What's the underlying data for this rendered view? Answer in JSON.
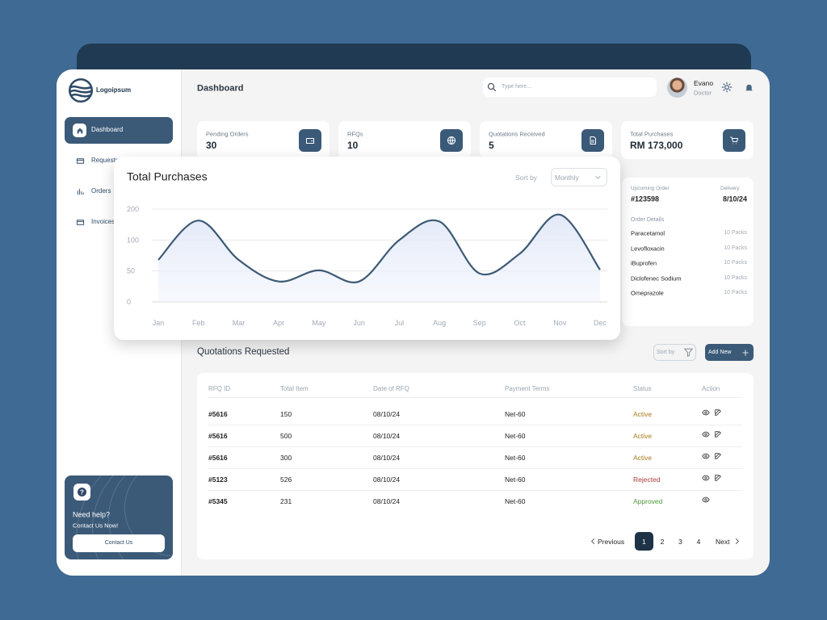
{
  "sidebar": {
    "brand": "Logoipsum",
    "nav": [
      "Dashboard",
      "Requests",
      "Orders",
      "Invoices"
    ],
    "help": {
      "title": "Need help?",
      "subtitle": "Contact Us Now!",
      "button": "Contact Us"
    }
  },
  "header": {
    "title": "Dashboard",
    "search_placeholder": "Type here...",
    "user": {
      "name": "Evano",
      "role": "Doctor"
    }
  },
  "stats": [
    {
      "label": "Pending Orders",
      "value": 30
    },
    {
      "label": "RFQs",
      "value": 10
    },
    {
      "label": "Quotations Received",
      "value": 5
    },
    {
      "label": "Total Purchases",
      "value": "RM 173,000"
    }
  ],
  "chart": {
    "type": "line",
    "title": "Total Purchases",
    "sort_label": "Sort by",
    "sort_value": "Monthly",
    "categories": [
      "Jan",
      "Feb",
      "Mar",
      "Apr",
      "May",
      "Jun",
      "Jul",
      "Aug",
      "Sep",
      "Oct",
      "Nov",
      "Dec"
    ],
    "values": [
      68,
      163,
      68,
      33,
      51,
      33,
      100,
      160,
      46,
      78,
      182,
      52
    ],
    "ylim": [
      0,
      200
    ],
    "yticks": [
      0,
      50,
      100,
      200
    ],
    "grid": true,
    "color": "#3d5a75"
  },
  "upcoming_order": {
    "label": "Upcoming Order",
    "id": "#123598",
    "delivery_label": "Delivery",
    "delivery": "8/10/24",
    "details_label": "Order Details",
    "items": [
      {
        "name": "Paracetamol",
        "qty": "10 Packs"
      },
      {
        "name": "Levofloxacin",
        "qty": "10 Packs"
      },
      {
        "name": "iBuprofen",
        "qty": "10 Packs"
      },
      {
        "name": "Diclofenec Sodium",
        "qty": "10 Packs"
      },
      {
        "name": "Omeprazole",
        "qty": "10 Packs"
      }
    ]
  },
  "quotations": {
    "title": "Quotations Requested",
    "sort_label": "Sort by",
    "add_label": "Add New",
    "columns": [
      "RFQ ID",
      "Total Item",
      "Date of RFQ",
      "Payment Terms",
      "Status",
      "Action"
    ],
    "rows": [
      {
        "id": "#5616",
        "total": 150,
        "date": "08/10/24",
        "terms": "Net-60",
        "status": "Active",
        "status_color": "#a87a1c",
        "editable": true
      },
      {
        "id": "#5616",
        "total": 500,
        "date": "08/10/24",
        "terms": "Net-60",
        "status": "Active",
        "status_color": "#a87a1c",
        "editable": true
      },
      {
        "id": "#5616",
        "total": 300,
        "date": "08/10/24",
        "terms": "Net-60",
        "status": "Active",
        "status_color": "#a87a1c",
        "editable": true
      },
      {
        "id": "#5123",
        "total": 526,
        "date": "08/10/24",
        "terms": "Net-60",
        "status": "Rejected",
        "status_color": "#b03a3a",
        "editable": true
      },
      {
        "id": "#5345",
        "total": 231,
        "date": "08/10/24",
        "terms": "Net-60",
        "status": "Approved",
        "status_color": "#4a9a3a",
        "editable": false
      }
    ]
  },
  "pagination": {
    "previous": "Previous",
    "pages": [
      "1",
      "2",
      "3",
      "4"
    ],
    "next": "Next"
  }
}
